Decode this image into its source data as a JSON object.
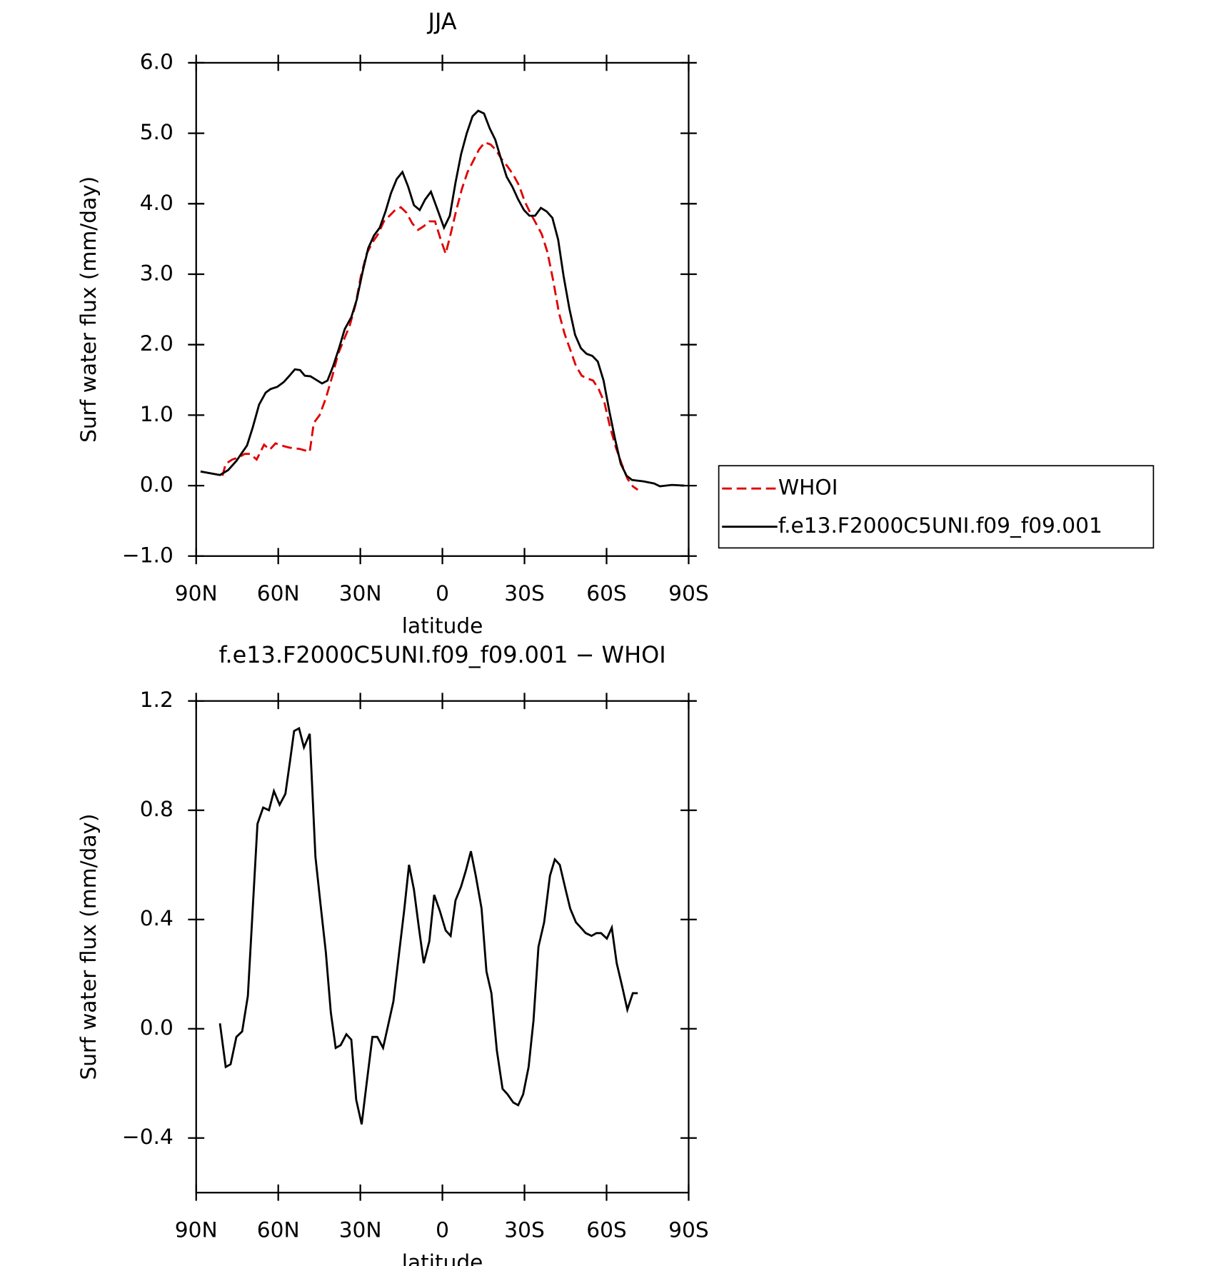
{
  "chart_data": [
    {
      "type": "line",
      "title": "JJA",
      "xlabel": "latitude",
      "ylabel": "Surf water flux (mm/day)",
      "xlim": [
        90,
        -90
      ],
      "xticks": [
        {
          "value": 90,
          "label": "90N"
        },
        {
          "value": 60,
          "label": "60N"
        },
        {
          "value": 30,
          "label": "30N"
        },
        0,
        {
          "value": -30,
          "label": "30S"
        },
        {
          "value": -60,
          "label": "60S"
        },
        {
          "value": -90,
          "label": "90S"
        }
      ],
      "ylim": [
        -1,
        6
      ],
      "yticks": [
        {
          "value": -1,
          "label": "−1.0"
        },
        {
          "value": 0,
          "label": "0.0"
        },
        {
          "value": 1,
          "label": "1.0"
        },
        {
          "value": 2,
          "label": "2.0"
        },
        {
          "value": 3,
          "label": "3.0"
        },
        {
          "value": 4,
          "label": "4.0"
        },
        {
          "value": 5,
          "label": "5.0"
        },
        {
          "value": 6,
          "label": "6.0"
        }
      ],
      "legend": "right",
      "series": [
        {
          "name": "WHOI",
          "color": "#e00000",
          "dash": "dashed",
          "x": [
            80.4,
            79.2,
            76.8,
            74.4,
            72.3,
            70.2,
            67.9,
            65.2,
            63.1,
            61,
            58.9,
            56,
            52.1,
            48.5,
            47,
            44.9,
            42.6,
            40.2,
            38.1,
            36,
            33.9,
            31.8,
            29.8,
            27.7,
            25.6,
            23.5,
            21.4,
            19.3,
            17.3,
            15.2,
            13.1,
            11,
            8.9,
            6.8,
            4.8,
            2.7,
            0.6,
            -1.2,
            -3,
            -5.1,
            -7.1,
            -9.2,
            -11.3,
            -13.4,
            -15.5,
            -17.6,
            -19.6,
            -21.7,
            -23.8,
            -25.9,
            -28,
            -30.1,
            -32.1,
            -34.2,
            -36.3,
            -38.4,
            -40.5,
            -42.6,
            -44.6,
            -46.7,
            -48.8,
            -50.9,
            -53,
            -55.1,
            -57.1,
            -59.2,
            -61.3,
            -63.4,
            -65.5,
            -67.6,
            -69.6,
            -71.4
          ],
          "values": [
            0.14,
            0.31,
            0.37,
            0.4,
            0.45,
            0.45,
            0.37,
            0.58,
            0.51,
            0.6,
            0.57,
            0.54,
            0.52,
            0.48,
            0.89,
            1.0,
            1.24,
            1.56,
            1.87,
            2.07,
            2.27,
            2.56,
            2.97,
            3.29,
            3.45,
            3.57,
            3.75,
            3.83,
            3.91,
            3.95,
            3.87,
            3.72,
            3.63,
            3.68,
            3.75,
            3.75,
            3.49,
            3.29,
            3.57,
            3.91,
            4.21,
            4.45,
            4.61,
            4.77,
            4.87,
            4.84,
            4.76,
            4.63,
            4.53,
            4.41,
            4.26,
            4.03,
            3.87,
            3.72,
            3.57,
            3.31,
            2.91,
            2.45,
            2.16,
            1.93,
            1.7,
            1.56,
            1.52,
            1.49,
            1.37,
            1.18,
            0.83,
            0.54,
            0.31,
            0.1,
            -0.01,
            -0.06
          ]
        },
        {
          "name": "f.e13.F2000C5UNI.f09_f09.001",
          "color": "#000000",
          "dash": "solid",
          "x": [
            88.4,
            81.3,
            78.3,
            75.3,
            71.4,
            69.3,
            67,
            64.6,
            62.8,
            60.4,
            58,
            55.9,
            53.9,
            52,
            50.3,
            48.2,
            46.1,
            44,
            42,
            39.9,
            37.8,
            35.7,
            33.3,
            31.3,
            29.2,
            27.1,
            25,
            22.9,
            20.8,
            18.8,
            16.7,
            14.6,
            12.5,
            10.4,
            8.3,
            6.3,
            4.2,
            2.1,
            -0.6,
            -2.7,
            -4.8,
            -6.8,
            -8.9,
            -11,
            -13.1,
            -15.2,
            -17.3,
            -19.3,
            -21.4,
            -23.5,
            -25.6,
            -27.7,
            -29.8,
            -31.8,
            -33.9,
            -36,
            -38.1,
            -40.2,
            -42.3,
            -44.3,
            -46.4,
            -48.5,
            -50.6,
            -52.7,
            -54.8,
            -56.8,
            -58.9,
            -61,
            -63.1,
            -65.2,
            -67.3,
            -69.3,
            -73.5,
            -77.4,
            -79.5,
            -83.9,
            -88.4
          ],
          "values": [
            0.2,
            0.15,
            0.22,
            0.35,
            0.57,
            0.83,
            1.15,
            1.32,
            1.37,
            1.4,
            1.47,
            1.56,
            1.65,
            1.64,
            1.56,
            1.55,
            1.5,
            1.45,
            1.49,
            1.7,
            1.95,
            2.22,
            2.39,
            2.64,
            3.03,
            3.37,
            3.55,
            3.66,
            3.89,
            4.15,
            4.35,
            4.45,
            4.24,
            3.98,
            3.91,
            4.06,
            4.17,
            3.95,
            3.66,
            3.83,
            4.3,
            4.7,
            5.0,
            5.24,
            5.32,
            5.28,
            5.07,
            4.91,
            4.64,
            4.38,
            4.24,
            4.06,
            3.91,
            3.83,
            3.83,
            3.94,
            3.89,
            3.8,
            3.49,
            2.97,
            2.51,
            2.14,
            1.95,
            1.87,
            1.84,
            1.76,
            1.49,
            1.06,
            0.66,
            0.31,
            0.14,
            0.08,
            0.06,
            0.03,
            -0.01,
            0.01,
            0.0
          ]
        }
      ]
    },
    {
      "type": "line",
      "title": "f.e13.F2000C5UNI.f09_f09.001 − WHOI",
      "xlabel": "latitude",
      "ylabel": "Surf water flux (mm/day)",
      "xlim": [
        90,
        -90
      ],
      "xticks": [
        {
          "value": 90,
          "label": "90N"
        },
        {
          "value": 60,
          "label": "60N"
        },
        {
          "value": 30,
          "label": "30N"
        },
        0,
        {
          "value": -30,
          "label": "30S"
        },
        {
          "value": -60,
          "label": "60S"
        },
        {
          "value": -90,
          "label": "90S"
        }
      ],
      "ylim": [
        -0.6,
        1.2
      ],
      "yticks": [
        {
          "value": -0.4,
          "label": "−0.4"
        },
        {
          "value": 0,
          "label": "0.0"
        },
        0.4,
        0.8,
        1.2
      ],
      "series": [
        {
          "color": "#000000",
          "dash": "solid",
          "x": [
            81.3,
            79.2,
            77.4,
            75.3,
            73.2,
            71.1,
            67.6,
            65.5,
            63.4,
            61.6,
            59.5,
            57.4,
            55.7,
            54.2,
            52.4,
            50.6,
            48.5,
            46.4,
            44.6,
            42.6,
            40.8,
            39,
            37.2,
            35.1,
            33.3,
            31.5,
            29.5,
            27.7,
            25.6,
            23.8,
            21.7,
            19.9,
            17.9,
            15.8,
            14,
            12.2,
            10.4,
            8.6,
            6.8,
            4.8,
            3,
            0.9,
            -1.2,
            -3,
            -4.8,
            -6.8,
            -8.6,
            -10.4,
            -12.2,
            -14.3,
            -16.1,
            -17.9,
            -19.9,
            -22,
            -23.8,
            -25.9,
            -27.7,
            -29.5,
            -31.5,
            -33.3,
            -35.1,
            -37.2,
            -39.3,
            -41.1,
            -42.9,
            -45,
            -46.7,
            -48.8,
            -50.6,
            -52.4,
            -54.5,
            -56.3,
            -58,
            -60.1,
            -61.9,
            -63.7,
            -65.8,
            -67.6,
            -69.6,
            -71.4
          ],
          "values": [
            0.02,
            -0.14,
            -0.13,
            -0.03,
            -0.01,
            0.12,
            0.75,
            0.81,
            0.8,
            0.87,
            0.82,
            0.86,
            0.98,
            1.09,
            1.1,
            1.03,
            1.08,
            0.63,
            0.46,
            0.28,
            0.06,
            -0.07,
            -0.06,
            -0.02,
            -0.04,
            -0.26,
            -0.35,
            -0.2,
            -0.03,
            -0.03,
            -0.07,
            0.01,
            0.1,
            0.28,
            0.43,
            0.6,
            0.51,
            0.37,
            0.24,
            0.32,
            0.49,
            0.43,
            0.36,
            0.34,
            0.47,
            0.52,
            0.58,
            0.65,
            0.56,
            0.44,
            0.21,
            0.13,
            -0.08,
            -0.22,
            -0.24,
            -0.27,
            -0.28,
            -0.24,
            -0.14,
            0.03,
            0.3,
            0.39,
            0.56,
            0.62,
            0.6,
            0.51,
            0.44,
            0.39,
            0.37,
            0.35,
            0.34,
            0.35,
            0.35,
            0.33,
            0.37,
            0.24,
            0.15,
            0.07,
            0.13,
            0.13
          ]
        }
      ]
    }
  ]
}
